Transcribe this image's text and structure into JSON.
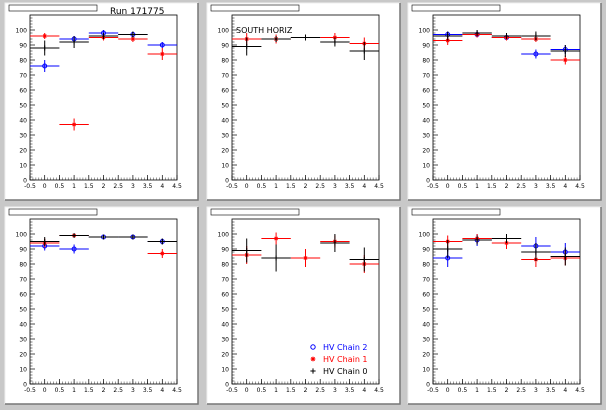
{
  "figure": {
    "run_label": "Run 171775",
    "region_label": "SOUTH HORIZ"
  },
  "legend": {
    "entries": [
      {
        "label": "HV Chain 2",
        "color": "#0000ff",
        "marker": "circle"
      },
      {
        "label": "HV Chain 1",
        "color": "#ff0000",
        "marker": "star"
      },
      {
        "label": "HV Chain 0",
        "color": "#000000",
        "marker": "plus"
      }
    ]
  },
  "chart_data": [
    {
      "type": "scatter",
      "title": "",
      "xlim": [
        -0.5,
        4.5
      ],
      "ylim": [
        0,
        110
      ],
      "xticks": [
        -0.5,
        0,
        0.5,
        1,
        1.5,
        2,
        2.5,
        3,
        3.5,
        4,
        4.5
      ],
      "yticks": [
        0,
        10,
        20,
        30,
        40,
        50,
        60,
        70,
        80,
        90,
        100
      ],
      "series": [
        {
          "name": "HV Chain 2",
          "color": "#0000ff",
          "x": [
            0,
            1,
            2,
            3,
            4
          ],
          "y": [
            76,
            94,
            98,
            97,
            90
          ],
          "yerr": [
            4,
            2,
            2,
            2,
            2
          ],
          "xerr": [
            0.5,
            0.5,
            0.5,
            0.5,
            0.5
          ]
        },
        {
          "name": "HV Chain 1",
          "color": "#ff0000",
          "x": [
            0,
            1,
            2,
            3,
            4
          ],
          "y": [
            96,
            37,
            95,
            94,
            84
          ],
          "yerr": [
            2,
            4,
            2,
            2,
            4
          ],
          "xerr": [
            0.5,
            0.5,
            0.5,
            0.5,
            0.5
          ]
        },
        {
          "name": "HV Chain 0",
          "color": "#000000",
          "x": [
            0,
            1,
            2,
            3
          ],
          "y": [
            88,
            92,
            96,
            97
          ],
          "yerr": [
            5,
            4,
            2,
            2
          ],
          "xerr": [
            0.5,
            0.5,
            0.5,
            0.5
          ]
        }
      ]
    },
    {
      "type": "scatter",
      "title": "",
      "xlim": [
        -0.5,
        4.5
      ],
      "ylim": [
        0,
        110
      ],
      "xticks": [
        -0.5,
        0,
        0.5,
        1,
        1.5,
        2,
        2.5,
        3,
        3.5,
        4,
        4.5
      ],
      "yticks": [
        0,
        10,
        20,
        30,
        40,
        50,
        60,
        70,
        80,
        90,
        100
      ],
      "series": [
        {
          "name": "HV Chain 2",
          "color": "#0000ff",
          "x": [],
          "y": [],
          "yerr": [],
          "xerr": []
        },
        {
          "name": "HV Chain 1",
          "color": "#ff0000",
          "x": [
            0,
            1,
            3,
            4
          ],
          "y": [
            94,
            94,
            95,
            91
          ],
          "yerr": [
            4,
            3,
            3,
            4
          ],
          "xerr": [
            0.5,
            0.5,
            0.5,
            0.5
          ]
        },
        {
          "name": "HV Chain 0",
          "color": "#000000",
          "x": [
            0,
            1,
            2,
            3,
            4
          ],
          "y": [
            89,
            94,
            95,
            92,
            86
          ],
          "yerr": [
            6,
            2,
            2,
            3,
            6
          ],
          "xerr": [
            0.5,
            0.5,
            0.5,
            0.5,
            0.5
          ]
        }
      ]
    },
    {
      "type": "scatter",
      "title": "",
      "xlim": [
        -0.5,
        4.5
      ],
      "ylim": [
        0,
        110
      ],
      "xticks": [
        -0.5,
        0,
        0.5,
        1,
        1.5,
        2,
        2.5,
        3,
        3.5,
        4,
        4.5
      ],
      "yticks": [
        0,
        10,
        20,
        30,
        40,
        50,
        60,
        70,
        80,
        90,
        100
      ],
      "series": [
        {
          "name": "HV Chain 2",
          "color": "#0000ff",
          "x": [
            0,
            1,
            2,
            3,
            4
          ],
          "y": [
            97,
            97,
            95,
            84,
            87
          ],
          "yerr": [
            2,
            2,
            2,
            3,
            3
          ],
          "xerr": [
            0.5,
            0.5,
            0.5,
            0.5,
            0.5
          ]
        },
        {
          "name": "HV Chain 1",
          "color": "#ff0000",
          "x": [
            0,
            1,
            2,
            3,
            4
          ],
          "y": [
            93,
            97,
            95,
            94,
            80
          ],
          "yerr": [
            3,
            2,
            2,
            2,
            3
          ],
          "xerr": [
            0.5,
            0.5,
            0.5,
            0.5,
            0.5
          ]
        },
        {
          "name": "HV Chain 0",
          "color": "#000000",
          "x": [
            0,
            1,
            2,
            3,
            4
          ],
          "y": [
            96,
            98,
            96,
            96,
            86
          ],
          "yerr": [
            3,
            2,
            2,
            3,
            4
          ],
          "xerr": [
            0.5,
            0.5,
            0.5,
            0.5,
            0.5
          ]
        }
      ]
    },
    {
      "type": "scatter",
      "title": "",
      "xlim": [
        -0.5,
        4.5
      ],
      "ylim": [
        0,
        110
      ],
      "xticks": [
        -0.5,
        0,
        0.5,
        1,
        1.5,
        2,
        2.5,
        3,
        3.5,
        4,
        4.5
      ],
      "yticks": [
        0,
        10,
        20,
        30,
        40,
        50,
        60,
        70,
        80,
        90,
        100
      ],
      "series": [
        {
          "name": "HV Chain 2",
          "color": "#0000ff",
          "x": [
            0,
            1,
            2,
            3,
            4
          ],
          "y": [
            92,
            90,
            98,
            98,
            95
          ],
          "yerr": [
            3,
            3,
            1,
            1,
            2
          ],
          "xerr": [
            0.5,
            0.5,
            0.5,
            0.5,
            0.5
          ]
        },
        {
          "name": "HV Chain 1",
          "color": "#ff0000",
          "x": [
            0,
            1,
            4
          ],
          "y": [
            94,
            99,
            87
          ],
          "yerr": [
            3,
            1,
            3
          ],
          "xerr": [
            0.5,
            0.5,
            0.5
          ]
        },
        {
          "name": "HV Chain 0",
          "color": "#000000",
          "x": [
            0,
            1,
            2,
            3,
            4
          ],
          "y": [
            95,
            99,
            98,
            98,
            95
          ],
          "yerr": [
            3,
            1,
            1,
            1,
            2
          ],
          "xerr": [
            0.5,
            0.5,
            0.5,
            0.5,
            0.5
          ]
        }
      ]
    },
    {
      "type": "scatter",
      "title": "",
      "xlim": [
        -0.5,
        4.5
      ],
      "ylim": [
        0,
        110
      ],
      "xticks": [
        -0.5,
        0,
        0.5,
        1,
        1.5,
        2,
        2.5,
        3,
        3.5,
        4,
        4.5
      ],
      "yticks": [
        0,
        10,
        20,
        30,
        40,
        50,
        60,
        70,
        80,
        90,
        100
      ],
      "series": [
        {
          "name": "HV Chain 2",
          "color": "#0000ff",
          "x": [],
          "y": [],
          "yerr": [],
          "xerr": []
        },
        {
          "name": "HV Chain 1",
          "color": "#ff0000",
          "x": [
            0,
            1,
            2,
            3,
            4
          ],
          "y": [
            86,
            97,
            84,
            95,
            80
          ],
          "yerr": [
            6,
            4,
            6,
            4,
            6
          ],
          "xerr": [
            0.5,
            0.5,
            0.5,
            0.5,
            0.5
          ]
        },
        {
          "name": "HV Chain 0",
          "color": "#000000",
          "x": [
            0,
            1,
            3,
            4
          ],
          "y": [
            89,
            84,
            94,
            83
          ],
          "yerr": [
            8,
            9,
            6,
            8
          ],
          "xerr": [
            0.5,
            0.5,
            0.5,
            0.5
          ]
        }
      ]
    },
    {
      "type": "scatter",
      "title": "",
      "xlim": [
        -0.5,
        4.5
      ],
      "ylim": [
        0,
        110
      ],
      "xticks": [
        -0.5,
        0,
        0.5,
        1,
        1.5,
        2,
        2.5,
        3,
        3.5,
        4,
        4.5
      ],
      "yticks": [
        0,
        10,
        20,
        30,
        40,
        50,
        60,
        70,
        80,
        90,
        100
      ],
      "series": [
        {
          "name": "HV Chain 2",
          "color": "#0000ff",
          "x": [
            0,
            1,
            3,
            4
          ],
          "y": [
            84,
            96,
            92,
            88
          ],
          "yerr": [
            6,
            4,
            6,
            6
          ],
          "xerr": [
            0.5,
            0.5,
            0.5,
            0.5
          ]
        },
        {
          "name": "HV Chain 1",
          "color": "#ff0000",
          "x": [
            0,
            1,
            2,
            3,
            4
          ],
          "y": [
            95,
            97,
            94,
            83,
            84
          ],
          "yerr": [
            4,
            3,
            4,
            5,
            5
          ],
          "xerr": [
            0.5,
            0.5,
            0.5,
            0.5,
            0.5
          ]
        },
        {
          "name": "HV Chain 0",
          "color": "#000000",
          "x": [
            0,
            1,
            2,
            3,
            4
          ],
          "y": [
            90,
            96,
            97,
            88,
            85
          ],
          "yerr": [
            6,
            3,
            3,
            6,
            6
          ],
          "xerr": [
            0.5,
            0.5,
            0.5,
            0.5,
            0.5
          ]
        }
      ]
    }
  ]
}
